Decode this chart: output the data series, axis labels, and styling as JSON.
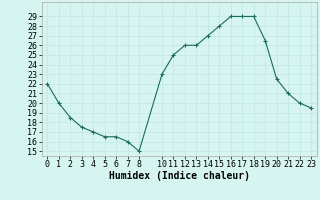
{
  "x": [
    0,
    1,
    2,
    3,
    4,
    5,
    6,
    7,
    8,
    10,
    11,
    12,
    13,
    14,
    15,
    16,
    17,
    18,
    19,
    20,
    21,
    22,
    23
  ],
  "y": [
    22,
    20,
    18.5,
    17.5,
    17,
    16.5,
    16.5,
    16,
    15,
    23,
    25,
    26,
    26,
    27,
    28,
    29,
    29,
    29,
    26.5,
    22.5,
    21,
    20,
    19.5
  ],
  "xlabel": "Humidex (Indice chaleur)",
  "xlim": [
    -0.5,
    23.5
  ],
  "ylim": [
    14.5,
    30.5
  ],
  "yticks": [
    15,
    16,
    17,
    18,
    19,
    20,
    21,
    22,
    23,
    24,
    25,
    26,
    27,
    28,
    29
  ],
  "xticks": [
    0,
    1,
    2,
    3,
    4,
    5,
    6,
    7,
    8,
    10,
    11,
    12,
    13,
    14,
    15,
    16,
    17,
    18,
    19,
    20,
    21,
    22,
    23
  ],
  "line_color": "#1a6b5a",
  "marker": "+",
  "bg_color": "#d6f5f0",
  "grid_color": "#c0e8e0",
  "label_fontsize": 7,
  "tick_fontsize": 6
}
